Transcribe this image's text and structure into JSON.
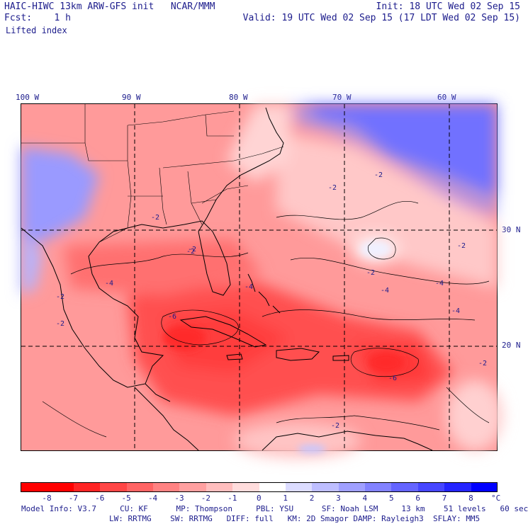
{
  "header": {
    "model": "HAIC-HIWC 13km ARW-GFS init",
    "org": "NCAR/MMM",
    "forecast_label": "Fcst:",
    "forecast_value": "1 h",
    "field": "Lifted index",
    "init": "Init: 18 UTC Wed 02 Sep 15",
    "valid": "Valid: 19 UTC Wed 02 Sep 15 (17 LDT Wed 02 Sep 15)"
  },
  "map": {
    "lon_labels": [
      "100 W",
      "90 W",
      "80 W",
      "70 W",
      "60 W"
    ],
    "lat_labels": [
      "30 N",
      "20 N"
    ],
    "contour_labels": [
      "-2",
      "-2",
      "-2",
      "-2",
      "-2",
      "-2",
      "-4",
      "-4",
      "-4",
      "-4",
      "-4",
      "-6",
      "-6",
      "-2",
      "-2",
      "-2",
      "-2",
      "-2"
    ]
  },
  "colorbar": {
    "labels": [
      "-8",
      "-7",
      "-6",
      "-5",
      "-4",
      "-3",
      "-2",
      "-1",
      "0",
      "1",
      "2",
      "3",
      "4",
      "5",
      "6",
      "7",
      "8"
    ],
    "unit": "°C",
    "colors": [
      "#ff0000",
      "#ff2424",
      "#ff4646",
      "#ff6464",
      "#ff8282",
      "#ffa0a0",
      "#ffbebe",
      "#ffdcdc",
      "#ffffff",
      "#dcdcff",
      "#bebeff",
      "#a0a0ff",
      "#8282ff",
      "#6464ff",
      "#4646ff",
      "#2424ff",
      "#0000ff"
    ]
  },
  "footer": {
    "line1": "Model Info: V3.7     CU: KF      MP: Thompson     PBL: YSU      SF: Noah LSM     13 km    51 levels   60 sec",
    "line2": "LW: RRTMG    SW: RRTMG   DIFF: full   KM: 2D Smagor DAMP: Rayleigh3  SFLAY: MM5"
  }
}
